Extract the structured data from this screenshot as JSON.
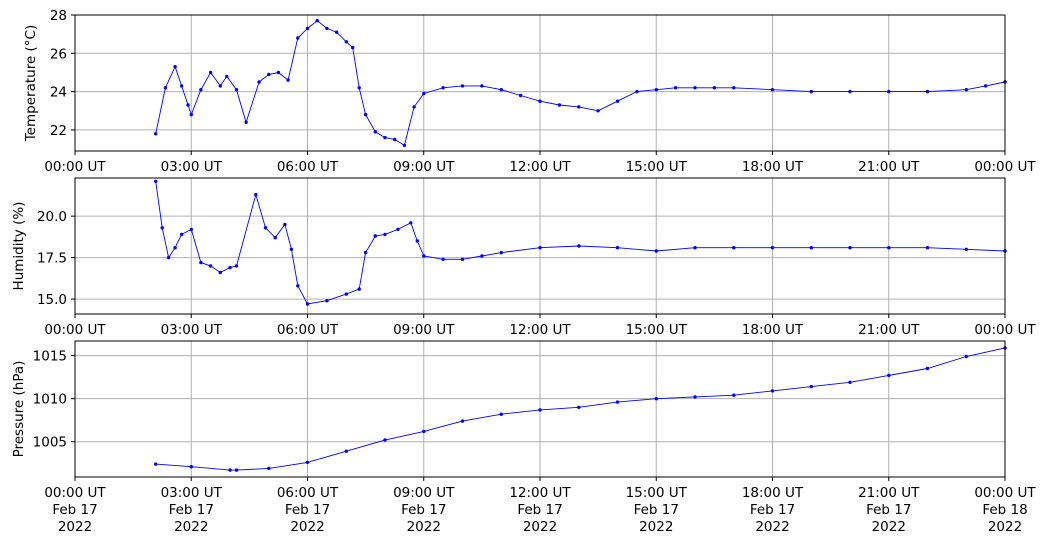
{
  "chart_data": [
    {
      "type": "line",
      "ylabel": "Temperature (°C)",
      "ylim": [
        20.9,
        28
      ],
      "yticks": [
        22,
        24,
        26,
        28
      ],
      "grid": true,
      "color": "#0000ff",
      "x": [
        "02:05",
        "02:20",
        "02:35",
        "02:45",
        "02:55",
        "03:00",
        "03:15",
        "03:30",
        "03:45",
        "03:55",
        "04:10",
        "04:25",
        "04:45",
        "05:00",
        "05:15",
        "05:30",
        "05:45",
        "06:00",
        "06:15",
        "06:30",
        "06:45",
        "07:00",
        "07:10",
        "07:20",
        "07:30",
        "07:45",
        "08:00",
        "08:15",
        "08:30",
        "08:45",
        "09:00",
        "09:30",
        "10:00",
        "10:30",
        "11:00",
        "11:30",
        "12:00",
        "12:30",
        "13:00",
        "13:30",
        "14:00",
        "14:30",
        "15:00",
        "15:30",
        "16:00",
        "16:30",
        "17:00",
        "18:00",
        "19:00",
        "20:00",
        "21:00",
        "22:00",
        "23:00",
        "23:30",
        "24:00"
      ],
      "values": [
        21.8,
        24.2,
        25.3,
        24.3,
        23.3,
        22.8,
        24.1,
        25.0,
        24.3,
        24.8,
        24.1,
        22.4,
        24.5,
        24.9,
        25.0,
        24.6,
        26.8,
        27.3,
        27.7,
        27.3,
        27.1,
        26.6,
        26.3,
        24.2,
        22.8,
        21.9,
        21.6,
        21.5,
        21.2,
        23.2,
        23.9,
        24.2,
        24.3,
        24.3,
        24.1,
        23.8,
        23.5,
        23.3,
        23.2,
        23.0,
        23.5,
        24.0,
        24.1,
        24.2,
        24.2,
        24.2,
        24.2,
        24.1,
        24.0,
        24.0,
        24.0,
        24.0,
        24.1,
        24.3,
        24.5
      ]
    },
    {
      "type": "line",
      "ylabel": "Humidity (%)",
      "ylim": [
        14.1,
        22.3
      ],
      "yticks": [
        15.0,
        17.5,
        20.0
      ],
      "grid": true,
      "color": "#0000ff",
      "x": [
        "02:05",
        "02:15",
        "02:25",
        "02:35",
        "02:45",
        "03:00",
        "03:15",
        "03:30",
        "03:45",
        "04:00",
        "04:10",
        "04:40",
        "04:55",
        "05:10",
        "05:25",
        "05:35",
        "05:45",
        "06:00",
        "06:30",
        "07:00",
        "07:20",
        "07:30",
        "07:45",
        "08:00",
        "08:20",
        "08:40",
        "08:50",
        "09:00",
        "09:30",
        "10:00",
        "10:30",
        "11:00",
        "12:00",
        "13:00",
        "14:00",
        "15:00",
        "16:00",
        "17:00",
        "18:00",
        "19:00",
        "20:00",
        "21:00",
        "22:00",
        "23:00",
        "24:00"
      ],
      "values": [
        22.1,
        19.3,
        17.5,
        18.1,
        18.9,
        19.2,
        17.2,
        17.0,
        16.6,
        16.9,
        17.0,
        21.3,
        19.3,
        18.7,
        19.5,
        18.0,
        15.8,
        14.7,
        14.9,
        15.3,
        15.6,
        17.8,
        18.8,
        18.9,
        19.2,
        19.6,
        18.5,
        17.6,
        17.4,
        17.4,
        17.6,
        17.8,
        18.1,
        18.2,
        18.1,
        17.9,
        18.1,
        18.1,
        18.1,
        18.1,
        18.1,
        18.1,
        18.1,
        18.0,
        17.9
      ]
    },
    {
      "type": "line",
      "ylabel": "Pressure (hPa)",
      "ylim": [
        1000.9,
        1016.7
      ],
      "yticks": [
        1005,
        1010,
        1015
      ],
      "grid": true,
      "color": "#0000ff",
      "x": [
        "02:05",
        "03:00",
        "04:00",
        "04:10",
        "05:00",
        "06:00",
        "07:00",
        "08:00",
        "09:00",
        "10:00",
        "11:00",
        "12:00",
        "13:00",
        "14:00",
        "15:00",
        "16:00",
        "17:00",
        "18:00",
        "19:00",
        "20:00",
        "21:00",
        "22:00",
        "23:00",
        "24:00"
      ],
      "values": [
        1002.4,
        1002.1,
        1001.7,
        1001.7,
        1001.9,
        1002.6,
        1003.9,
        1005.2,
        1006.2,
        1007.4,
        1008.2,
        1008.7,
        1009.0,
        1009.6,
        1010.0,
        1010.2,
        1010.4,
        1010.9,
        1011.4,
        1011.9,
        1012.7,
        1013.5,
        1014.9,
        1015.9
      ]
    }
  ],
  "x_axis": {
    "range": [
      "00:00",
      "24:00"
    ],
    "ticks": [
      {
        "t": "00:00",
        "label": "00:00 UT",
        "date": "Feb 17",
        "year": "2022"
      },
      {
        "t": "03:00",
        "label": "03:00 UT",
        "date": "Feb 17",
        "year": "2022"
      },
      {
        "t": "06:00",
        "label": "06:00 UT",
        "date": "Feb 17",
        "year": "2022"
      },
      {
        "t": "09:00",
        "label": "09:00 UT",
        "date": "Feb 17",
        "year": "2022"
      },
      {
        "t": "12:00",
        "label": "12:00 UT",
        "date": "Feb 17",
        "year": "2022"
      },
      {
        "t": "15:00",
        "label": "15:00 UT",
        "date": "Feb 17",
        "year": "2022"
      },
      {
        "t": "18:00",
        "label": "18:00 UT",
        "date": "Feb 17",
        "year": "2022"
      },
      {
        "t": "21:00",
        "label": "21:00 UT",
        "date": "Feb 17",
        "year": "2022"
      },
      {
        "t": "24:00",
        "label": "00:00 UT",
        "date": "Feb 18",
        "year": "2022"
      }
    ]
  }
}
